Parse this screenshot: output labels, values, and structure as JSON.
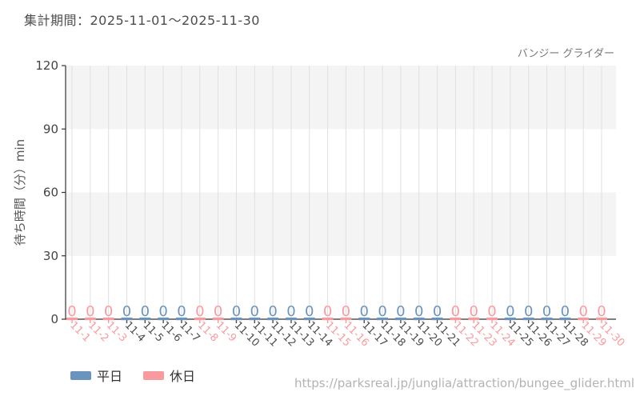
{
  "header": {
    "period_label": "集計期間：2025-11-01～2025-11-30",
    "attraction_name": "バンジー グライダー"
  },
  "legend": {
    "items": [
      {
        "label": "平日",
        "color": "#6a94be"
      },
      {
        "label": "休日",
        "color": "#fa9a9e"
      }
    ]
  },
  "footer": {
    "url": "https://parksreal.jp/junglia/attraction/bungee_glider.html"
  },
  "chart_data": {
    "type": "line",
    "title": "バンジー グライダー",
    "xlabel": "",
    "ylabel": "待ち時間（分）min",
    "ylim": [
      0,
      120
    ],
    "yticks": [
      0,
      30,
      60,
      90,
      120
    ],
    "grid": {
      "vertical": true,
      "alternating_horizontal_bands": true
    },
    "legend_position": "bottom-left",
    "data_label_text": "0",
    "categories": [
      "11-1",
      "11-2",
      "11-3",
      "11-4",
      "11-5",
      "11-6",
      "11-7",
      "11-8",
      "11-9",
      "11-10",
      "11-11",
      "11-12",
      "11-13",
      "11-14",
      "11-15",
      "11-16",
      "11-17",
      "11-18",
      "11-19",
      "11-20",
      "11-21",
      "11-22",
      "11-23",
      "11-24",
      "11-25",
      "11-26",
      "11-27",
      "11-28",
      "11-29",
      "11-30"
    ],
    "day_types": [
      "holiday",
      "holiday",
      "holiday",
      "weekday",
      "weekday",
      "weekday",
      "weekday",
      "holiday",
      "holiday",
      "weekday",
      "weekday",
      "weekday",
      "weekday",
      "weekday",
      "holiday",
      "holiday",
      "weekday",
      "weekday",
      "weekday",
      "weekday",
      "weekday",
      "holiday",
      "holiday",
      "holiday",
      "weekday",
      "weekday",
      "weekday",
      "weekday",
      "holiday",
      "holiday"
    ],
    "series": [
      {
        "name": "平日",
        "day_type": "weekday",
        "color": "#6a94be",
        "values": [
          null,
          null,
          null,
          0,
          0,
          0,
          0,
          null,
          null,
          0,
          0,
          0,
          0,
          0,
          null,
          null,
          0,
          0,
          0,
          0,
          0,
          null,
          null,
          null,
          0,
          0,
          0,
          0,
          null,
          null
        ]
      },
      {
        "name": "休日",
        "day_type": "holiday",
        "color": "#fa9a9e",
        "values": [
          0,
          0,
          0,
          null,
          null,
          null,
          null,
          0,
          0,
          null,
          null,
          null,
          null,
          null,
          0,
          0,
          null,
          null,
          null,
          null,
          null,
          0,
          0,
          0,
          null,
          null,
          null,
          null,
          0,
          0
        ]
      }
    ],
    "colors": {
      "weekday": "#6a94be",
      "holiday": "#fa9a9e",
      "weekday_tick_label": "#4d4d4d",
      "holiday_tick_label": "#fa9a9e",
      "band": "#f4f4f4",
      "gridline": "#e0e0e0",
      "axis": "#333333",
      "y_tick_label": "#444444",
      "y_axis_title": "#555555"
    }
  }
}
